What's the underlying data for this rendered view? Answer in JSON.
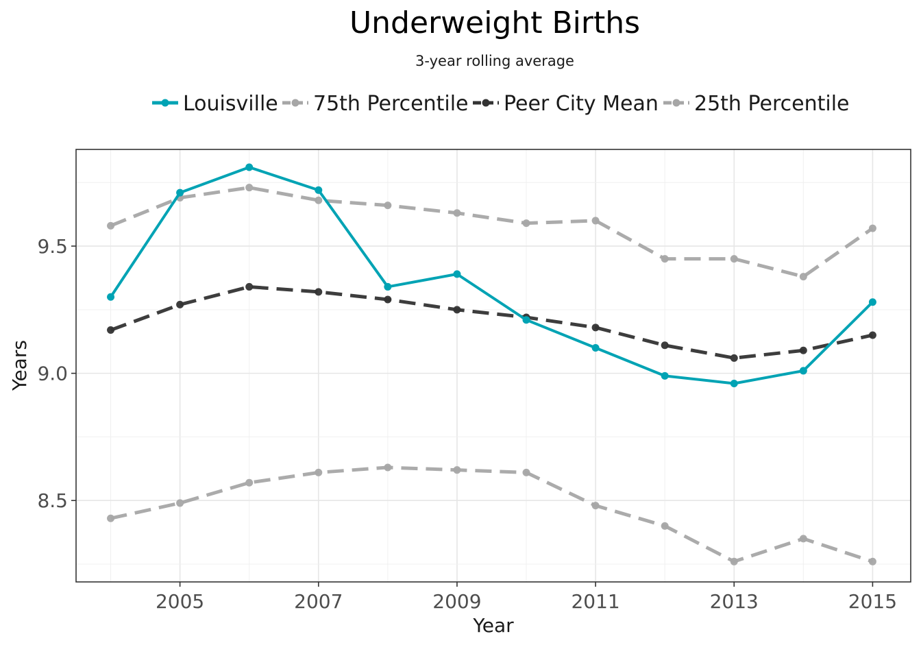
{
  "chart_data": {
    "type": "line",
    "title": "Underweight Births",
    "subtitle": "3-year rolling average",
    "xlabel": "Year",
    "ylabel": "Years",
    "x": [
      2004,
      2005,
      2006,
      2007,
      2008,
      2009,
      2010,
      2011,
      2012,
      2013,
      2014,
      2015
    ],
    "xlim": [
      2003.5,
      2015.55
    ],
    "ylim": [
      8.18,
      9.88
    ],
    "x_ticks": [
      2005,
      2007,
      2009,
      2011,
      2013,
      2015
    ],
    "y_ticks": [
      8.5,
      9.0,
      9.5
    ],
    "x_tick_labels": [
      "2005",
      "2007",
      "2009",
      "2011",
      "2013",
      "2015"
    ],
    "y_tick_labels": [
      "8.5",
      "9.0",
      "9.5"
    ],
    "grid": true,
    "legend_position": "top",
    "series": [
      {
        "name": "Louisville",
        "color": "#00a3b4",
        "style": "solid",
        "values": [
          9.3,
          9.71,
          9.81,
          9.72,
          9.34,
          9.39,
          9.21,
          9.1,
          8.99,
          8.96,
          9.01,
          9.28
        ]
      },
      {
        "name": "75th Percentile",
        "color": "#a6a6a6",
        "style": "dashed",
        "values": [
          9.58,
          9.69,
          9.73,
          9.68,
          9.66,
          9.63,
          9.59,
          9.6,
          9.45,
          9.45,
          9.38,
          9.57
        ]
      },
      {
        "name": "Peer City Mean",
        "color": "#333333",
        "style": "dashed",
        "values": [
          9.17,
          9.27,
          9.34,
          9.32,
          9.29,
          9.25,
          9.22,
          9.18,
          9.11,
          9.06,
          9.09,
          9.15
        ]
      },
      {
        "name": "25th Percentile",
        "color": "#a6a6a6",
        "style": "dashed",
        "values": [
          8.43,
          8.49,
          8.57,
          8.61,
          8.63,
          8.62,
          8.61,
          8.48,
          8.4,
          8.26,
          8.35,
          8.26
        ]
      }
    ]
  }
}
